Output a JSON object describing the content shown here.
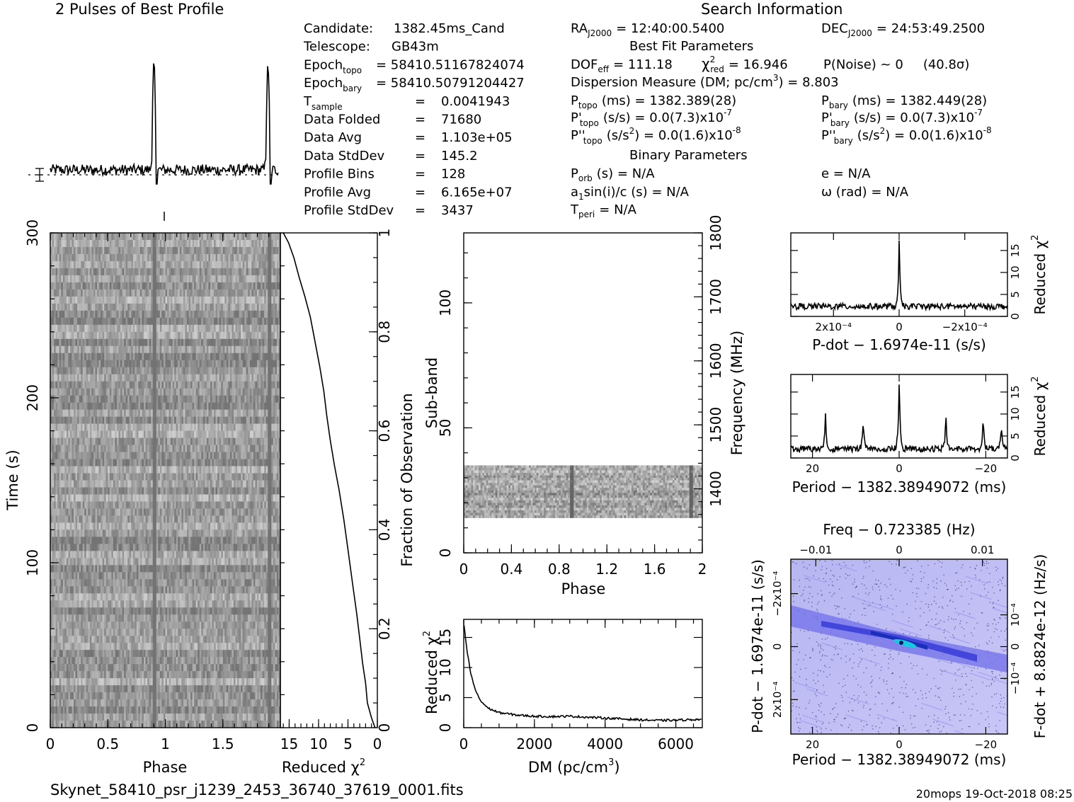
{
  "profile_title": "2 Pulses of Best Profile",
  "search_title": "Search Information",
  "filename": "Skynet_58410_psr_j1239_2453_36740_37619_0001.fits",
  "footer_stamp": "20mops 19-Oct-2018 08:25",
  "candidate_info": [
    {
      "label": "Candidate:",
      "sub": "",
      "eq": "",
      "value": "1382.45ms_Cand"
    },
    {
      "label": "Telescope:",
      "sub": "",
      "eq": "",
      "value": "GB43m"
    },
    {
      "label": "Epoch",
      "sub": "topo",
      "eq": "=",
      "value": "58410.51167824074"
    },
    {
      "label": "Epoch",
      "sub": "bary",
      "eq": "=",
      "value": "58410.50791204427"
    },
    {
      "label": "T",
      "sub": "sample",
      "eq": "=",
      "value": "0.0041943"
    },
    {
      "label": "Data Folded",
      "sub": "",
      "eq": "=",
      "value": "71680"
    },
    {
      "label": "Data Avg",
      "sub": "",
      "eq": "=",
      "value": "1.103e+05"
    },
    {
      "label": "Data StdDev",
      "sub": "",
      "eq": "=",
      "value": "145.2"
    },
    {
      "label": "Profile Bins",
      "sub": "",
      "eq": "=",
      "value": "128"
    },
    {
      "label": "Profile Avg",
      "sub": "",
      "eq": "=",
      "value": "6.165e+07"
    },
    {
      "label": "Profile StdDev",
      "sub": "",
      "eq": "=",
      "value": "3437"
    }
  ],
  "search_info": {
    "ra": {
      "label": "RA",
      "sub": "J2000",
      "value": "= 12:40:00.5400"
    },
    "dec": {
      "label": "DEC",
      "sub": "J2000",
      "value": "= 24:53:49.2500"
    },
    "best_fit_title": "Best Fit Parameters",
    "dof": {
      "label": "DOF",
      "sub": "eff",
      "value": "= 111.18"
    },
    "chi2": {
      "label": "χ",
      "sup": "2",
      "sub": "red",
      "value": "= 16.946"
    },
    "pnoise": {
      "label": "P(Noise) ~ 0",
      "sigma": "(40.8σ)"
    },
    "dm_line": {
      "text": "Dispersion Measure (DM; pc/cm",
      "sup": "3",
      "value": ") = 8.803"
    },
    "ptopo": {
      "label": "P",
      "sub": "topo",
      "value": "(ms) =  1382.389(28)"
    },
    "pbary": {
      "label": "P",
      "sub": "bary",
      "value": "(ms) =  1382.449(28)"
    },
    "pdtopo": {
      "label": "P'",
      "sub": "topo",
      "value": "(s/s) = 0.0(7.3)x10",
      "exp": "-7"
    },
    "pdbary": {
      "label": "P'",
      "sub": "bary",
      "value": "(s/s) = 0.0(7.3)x10",
      "exp": "-7"
    },
    "pddtopo": {
      "label": "P''",
      "sub": "topo",
      "value": "(s/s",
      "sup": "2",
      "value2": ") = 0.0(1.6)x10",
      "exp": "-8"
    },
    "pddbary": {
      "label": "P''",
      "sub": "bary",
      "value": "(s/s",
      "sup": "2",
      "value2": ") = 0.0(1.6)x10",
      "exp": "-8"
    },
    "binary_title": "Binary Parameters",
    "porb": {
      "label": "P",
      "sub": "orb",
      "value": "(s) = N/A"
    },
    "e": "e = N/A",
    "a1": {
      "label": "a",
      "sub": "1",
      "value": "sin(i)/c (s) = N/A"
    },
    "omega": "ω (rad) = N/A",
    "tperi": {
      "label": "T",
      "sub": "peri",
      "value": "= N/A"
    }
  },
  "chart_data": [
    {
      "id": "profile",
      "type": "line",
      "title": "2 Pulses of Best Profile",
      "xlabel": "",
      "ylabel": "",
      "xlim": [
        0,
        2
      ],
      "pulse_phase": [
        0.91,
        1.91
      ],
      "pulse_height": [
        0.85,
        0.83
      ],
      "baseline_fraction": 0.14,
      "error_bar": "left"
    },
    {
      "id": "time_phase",
      "type": "heatmap",
      "xlabel": "Phase",
      "ylabel": "Time (s)",
      "xlim": [
        0,
        2
      ],
      "ylim": [
        0,
        300
      ],
      "xticks": [
        "0",
        "0.5",
        "1",
        "1.5"
      ],
      "yticks": [
        "0",
        "100",
        "200",
        "300"
      ],
      "pulse_phase": [
        0.91,
        1.91
      ],
      "grayscale": true
    },
    {
      "id": "time_chi2",
      "type": "line",
      "xlabel": "Reduced χ²",
      "ylabel": "Fraction of Observation",
      "xlim": [
        16.5,
        0
      ],
      "ylim": [
        0,
        1
      ],
      "xticks": [
        "15",
        "10",
        "5",
        "0"
      ],
      "yticks": [
        "0.2",
        "0.4",
        "0.6",
        "0.8",
        "1"
      ],
      "points": [
        [
          0.4,
          0.0
        ],
        [
          1.0,
          0.02
        ],
        [
          1.7,
          0.05
        ],
        [
          2.0,
          0.09
        ],
        [
          2.5,
          0.13
        ],
        [
          3.0,
          0.18
        ],
        [
          3.5,
          0.23
        ],
        [
          4.2,
          0.29
        ],
        [
          5.0,
          0.36
        ],
        [
          5.7,
          0.42
        ],
        [
          6.5,
          0.48
        ],
        [
          7.3,
          0.53
        ],
        [
          8.0,
          0.58
        ],
        [
          8.6,
          0.63
        ],
        [
          9.1,
          0.68
        ],
        [
          9.8,
          0.73
        ],
        [
          10.6,
          0.78
        ],
        [
          11.4,
          0.83
        ],
        [
          12.3,
          0.87
        ],
        [
          13.3,
          0.91
        ],
        [
          14.2,
          0.95
        ],
        [
          15.1,
          0.98
        ],
        [
          16.0,
          1.0
        ]
      ]
    },
    {
      "id": "subband_phase",
      "type": "heatmap",
      "xlabel": "Phase",
      "ylabel": "Sub-band",
      "y2label": "Frequency (MHz)",
      "xlim": [
        0,
        2
      ],
      "ylim": [
        0,
        128
      ],
      "y2lim": [
        1300,
        1800
      ],
      "xticks": [
        "0",
        "0.4",
        "0.8",
        "1.2",
        "1.6",
        "2"
      ],
      "yticks": [
        "0",
        "50",
        "100"
      ],
      "y2ticks": [
        "1400",
        "1500",
        "1600",
        "1700",
        "1800"
      ],
      "band_subbands": [
        14,
        35
      ],
      "pulse_phase": [
        0.91,
        1.91
      ]
    },
    {
      "id": "dm_chi2",
      "type": "line",
      "xlabel": "DM (pc/cm³)",
      "ylabel": "Reduced χ²",
      "xlim": [
        0,
        6750
      ],
      "ylim": [
        0,
        18
      ],
      "xticks": [
        "0",
        "2000",
        "4000",
        "6000"
      ],
      "yticks": [
        "0",
        "5",
        "10",
        "15"
      ],
      "points": [
        [
          8.8,
          16.9
        ],
        [
          100,
          12.5
        ],
        [
          200,
          9.0
        ],
        [
          300,
          6.8
        ],
        [
          400,
          5.3
        ],
        [
          500,
          4.3
        ],
        [
          700,
          3.2
        ],
        [
          1000,
          2.5
        ],
        [
          1500,
          2.1
        ],
        [
          2000,
          1.9
        ],
        [
          2500,
          1.85
        ],
        [
          3000,
          1.9
        ],
        [
          3500,
          1.75
        ],
        [
          4000,
          1.6
        ],
        [
          4500,
          1.45
        ],
        [
          5000,
          1.3
        ],
        [
          5500,
          1.2
        ],
        [
          6000,
          1.25
        ],
        [
          6500,
          1.35
        ],
        [
          6750,
          1.4
        ]
      ]
    },
    {
      "id": "pdot_chi2",
      "type": "line",
      "xlabel": "P-dot − 1.6974e-11 (s/s)",
      "ylabel": "Reduced χ²",
      "xlim": [
        0.00033,
        -0.00033
      ],
      "ylim": [
        0,
        19
      ],
      "xticks": [
        "2x10⁻⁴",
        "0",
        "−2x10⁻⁴"
      ],
      "yticks": [
        "0",
        "5",
        "10",
        "15"
      ],
      "peak": {
        "x": 0,
        "y": 16.9
      },
      "baseline": 2.0
    },
    {
      "id": "period_chi2",
      "type": "line",
      "xlabel": "Period − 1382.38949072 (ms)",
      "ylabel": "Reduced χ²",
      "xlim": [
        25,
        -25
      ],
      "ylim": [
        0,
        19
      ],
      "xticks": [
        "20",
        "0",
        "−20"
      ],
      "yticks": [
        "0",
        "5",
        "10",
        "15"
      ],
      "peaks": [
        [
          0,
          16.9
        ],
        [
          17,
          7.8
        ],
        [
          8.3,
          6.4
        ],
        [
          -10.8,
          7.6
        ],
        [
          -19.4,
          7.2
        ],
        [
          -23.6,
          5.0
        ]
      ],
      "baseline": 1.8
    },
    {
      "id": "period_pdot",
      "type": "heatmap",
      "title": "Freq − 0.723385 (Hz)",
      "xlabel": "Period − 1382.38949072 (ms)",
      "ylabel": "P-dot − 1.6974e-11 (s/s)",
      "y2label": "F-dot + 8.8824e-12 (Hz/s)",
      "xlim": [
        25,
        -25
      ],
      "ylim": [
        0.00033,
        -0.00033
      ],
      "xticks": [
        "20",
        "0",
        "−20"
      ],
      "x2ticks": [
        "−0.01",
        "0",
        "0.01"
      ],
      "yticks": [
        "2x10⁻⁴",
        "0",
        "−2x10⁻⁴"
      ],
      "y2ticks": [
        "−10⁻⁴",
        "0",
        "10⁻⁴"
      ],
      "best": {
        "x": 0,
        "y": 0
      },
      "colors": {
        "bg": "#b8b6f2",
        "mid": "#5a5ae6",
        "hi": "#1a2fb8",
        "peak": "#19c7e0"
      }
    }
  ]
}
